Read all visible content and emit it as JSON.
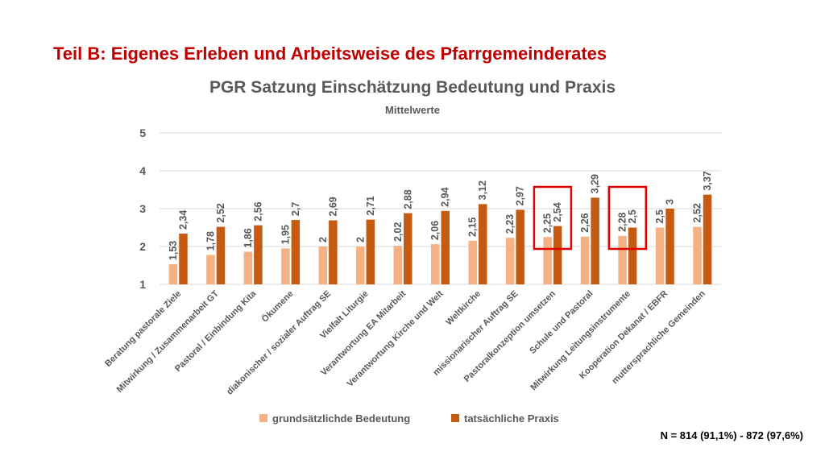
{
  "page": {
    "title": "Teil B: Eigenes Erleben und Arbeitsweise des Pfarrgemeinderates",
    "footnote": "N = 814 (91,1%) - 872 (97,6%)"
  },
  "chart_data": {
    "type": "bar",
    "title": "PGR Satzung Einschätzung Bedeutung und Praxis",
    "subtitle": "Mittelwerte",
    "xlabel": "",
    "ylabel": "",
    "ylim": [
      1,
      5
    ],
    "yticks": [
      "1",
      "2",
      "3",
      "4",
      "5"
    ],
    "grid": true,
    "legend_position": "bottom",
    "categories": [
      "Beratung pastorale Ziele",
      "Mitwirkung / Zusammenarbeit GT",
      "Pastoral / Einbindung Kita",
      "Ökumene",
      "diakonischer / sozialer Auftrag SE",
      "Vielfalt Liturgie",
      "Verantwortung EA Mitarbeit",
      "Verantwortung Kirche und Welt",
      "Weltkirche",
      "missionarischer Auftrag SE",
      "Pastoralkonzeption umsetzen",
      "Schule und Pastoral",
      "Mitwirkung Leitungsinstrumente",
      "Kooperation Dekanat / EBFR",
      "muttersprachliche Gemeinden"
    ],
    "series": [
      {
        "name": "grundsätzlichde Bedeutung",
        "color": "#f4b183",
        "values": [
          1.53,
          1.78,
          1.86,
          1.95,
          2,
          2,
          2.02,
          2.06,
          2.15,
          2.23,
          2.25,
          2.26,
          2.28,
          2.5,
          2.52
        ],
        "labels": [
          "1,53",
          "1,78",
          "1,86",
          "1,95",
          "2",
          "2",
          "2,02",
          "2,06",
          "2,15",
          "2,23",
          "2,25",
          "2,26",
          "2,28",
          "2,5",
          "2,52"
        ]
      },
      {
        "name": "tatsächliche Praxis",
        "color": "#c55a11",
        "values": [
          2.34,
          2.52,
          2.56,
          2.7,
          2.69,
          2.71,
          2.88,
          2.94,
          3.12,
          2.97,
          2.54,
          3.29,
          2.5,
          3,
          3.37
        ],
        "labels": [
          "2,34",
          "2,52",
          "2,56",
          "2,7",
          "2,69",
          "2,71",
          "2,88",
          "2,94",
          "3,12",
          "2,97",
          "2,54",
          "3,29",
          "2,5",
          "3",
          "3,37"
        ]
      }
    ],
    "highlighted_categories": [
      "Pastoralkonzeption umsetzen",
      "Mitwirkung Leitungsinstrumente"
    ],
    "highlight_color": "#e00000",
    "gridline_color": "#d9d9d9",
    "text_color": "#595959"
  }
}
